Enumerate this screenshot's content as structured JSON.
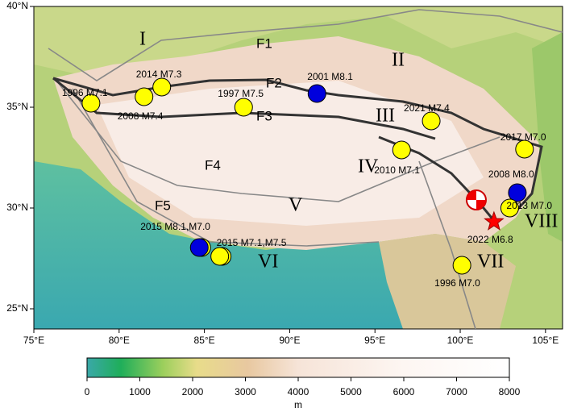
{
  "map": {
    "xlim": [
      75,
      106
    ],
    "ylim": [
      24,
      40
    ],
    "xticks": [
      {
        "value": 75,
        "label": "75°E"
      },
      {
        "value": 80,
        "label": "80°E"
      },
      {
        "value": 85,
        "label": "85°E"
      },
      {
        "value": 90,
        "label": "90°E"
      },
      {
        "value": 95,
        "label": "95°E"
      },
      {
        "value": 100,
        "label": "100°E"
      },
      {
        "value": 105,
        "label": "105°E"
      }
    ],
    "yticks": [
      {
        "value": 25,
        "label": "25°N"
      },
      {
        "value": 30,
        "label": "30°N"
      },
      {
        "value": 35,
        "label": "35°N"
      },
      {
        "value": 40,
        "label": "40°N"
      }
    ],
    "regions": [
      "I",
      "II",
      "III",
      "IV",
      "V",
      "VI",
      "VII",
      "VIII"
    ],
    "faults": [
      "F1",
      "F2",
      "F3",
      "F4",
      "F5"
    ],
    "events": [
      {
        "label": "1996 M7.1",
        "lon": 78.35,
        "lat": 35.2,
        "color": "#ffff00"
      },
      {
        "label": "2014 M7.3",
        "lon": 82.5,
        "lat": 36.0,
        "color": "#ffff00"
      },
      {
        "label": "2008 M7.4",
        "lon": 81.46,
        "lat": 35.52,
        "color": "#ffff00"
      },
      {
        "label": "1997 M7.5",
        "lon": 87.3,
        "lat": 35.0,
        "color": "#ffff00"
      },
      {
        "label": "2001 M8.1",
        "lon": 91.6,
        "lat": 35.68,
        "color": "#0000dd"
      },
      {
        "label": "2021 M7.4",
        "lon": 98.3,
        "lat": 34.32,
        "color": "#ffff00"
      },
      {
        "label": "2017 M7.0",
        "lon": 103.77,
        "lat": 32.92,
        "color": "#ffff00"
      },
      {
        "label": "2010 M7.1",
        "lon": 96.56,
        "lat": 32.88,
        "color": "#ffff00"
      },
      {
        "label": "2008 M8.0",
        "lon": 103.35,
        "lat": 30.76,
        "color": "#0000dd"
      },
      {
        "label": "2013 M7.0",
        "lon": 102.9,
        "lat": 30.0,
        "color": "#ffff00"
      },
      {
        "label": "2022 M6.8",
        "lon": 101.98,
        "lat": 29.32,
        "color": "#ff0000"
      },
      {
        "label": "2015 M8.1,M7.0",
        "lon": 84.7,
        "lat": 28.04,
        "color": "#0000dd"
      },
      {
        "label": "2015 M7.1,M7.5",
        "lon": 85.9,
        "lat": 27.6,
        "color": "#ffff00"
      },
      {
        "label": "1996 M7.0",
        "lon": 100.1,
        "lat": 27.16,
        "color": "#ffff00"
      }
    ],
    "colorbar": {
      "lim": [
        0,
        8000
      ],
      "ticks": [
        0,
        1000,
        2000,
        3000,
        4000,
        5000,
        6000,
        7000,
        8000
      ],
      "unit": "m"
    }
  }
}
